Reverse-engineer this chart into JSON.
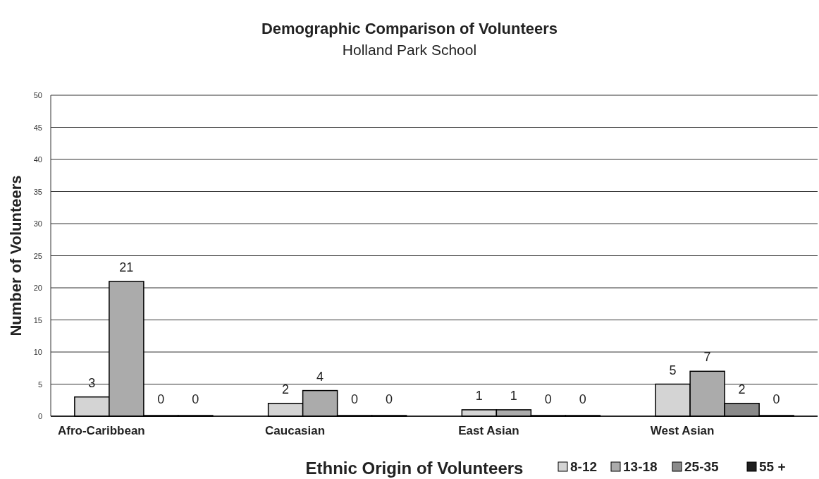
{
  "chart_data": {
    "type": "bar",
    "title": "Demographic Comparison of Volunteers",
    "subtitle": "Holland Park School",
    "xlabel": "Ethnic Origin of Volunteers",
    "ylabel": "Number of Volunteers",
    "categories": [
      "Afro-Caribbean",
      "Caucasian",
      "East Asian",
      "West Asian"
    ],
    "series": [
      {
        "name": "8-12",
        "color": "#d4d4d4",
        "values": [
          3,
          2,
          1,
          5
        ]
      },
      {
        "name": "13-18",
        "color": "#ababab",
        "values": [
          21,
          4,
          1,
          7
        ]
      },
      {
        "name": "25-35",
        "color": "#8a8a8a",
        "values": [
          0,
          0,
          0,
          2
        ]
      },
      {
        "name": "55 +",
        "color": "#1e1e1e",
        "values": [
          0,
          0,
          0,
          0
        ]
      }
    ],
    "ylim": [
      0,
      50
    ],
    "yticks": [
      0,
      5,
      10,
      15,
      20,
      25,
      30,
      35,
      40,
      45,
      50
    ],
    "grid": "y",
    "data_labels": true,
    "legend": "bottom right"
  }
}
